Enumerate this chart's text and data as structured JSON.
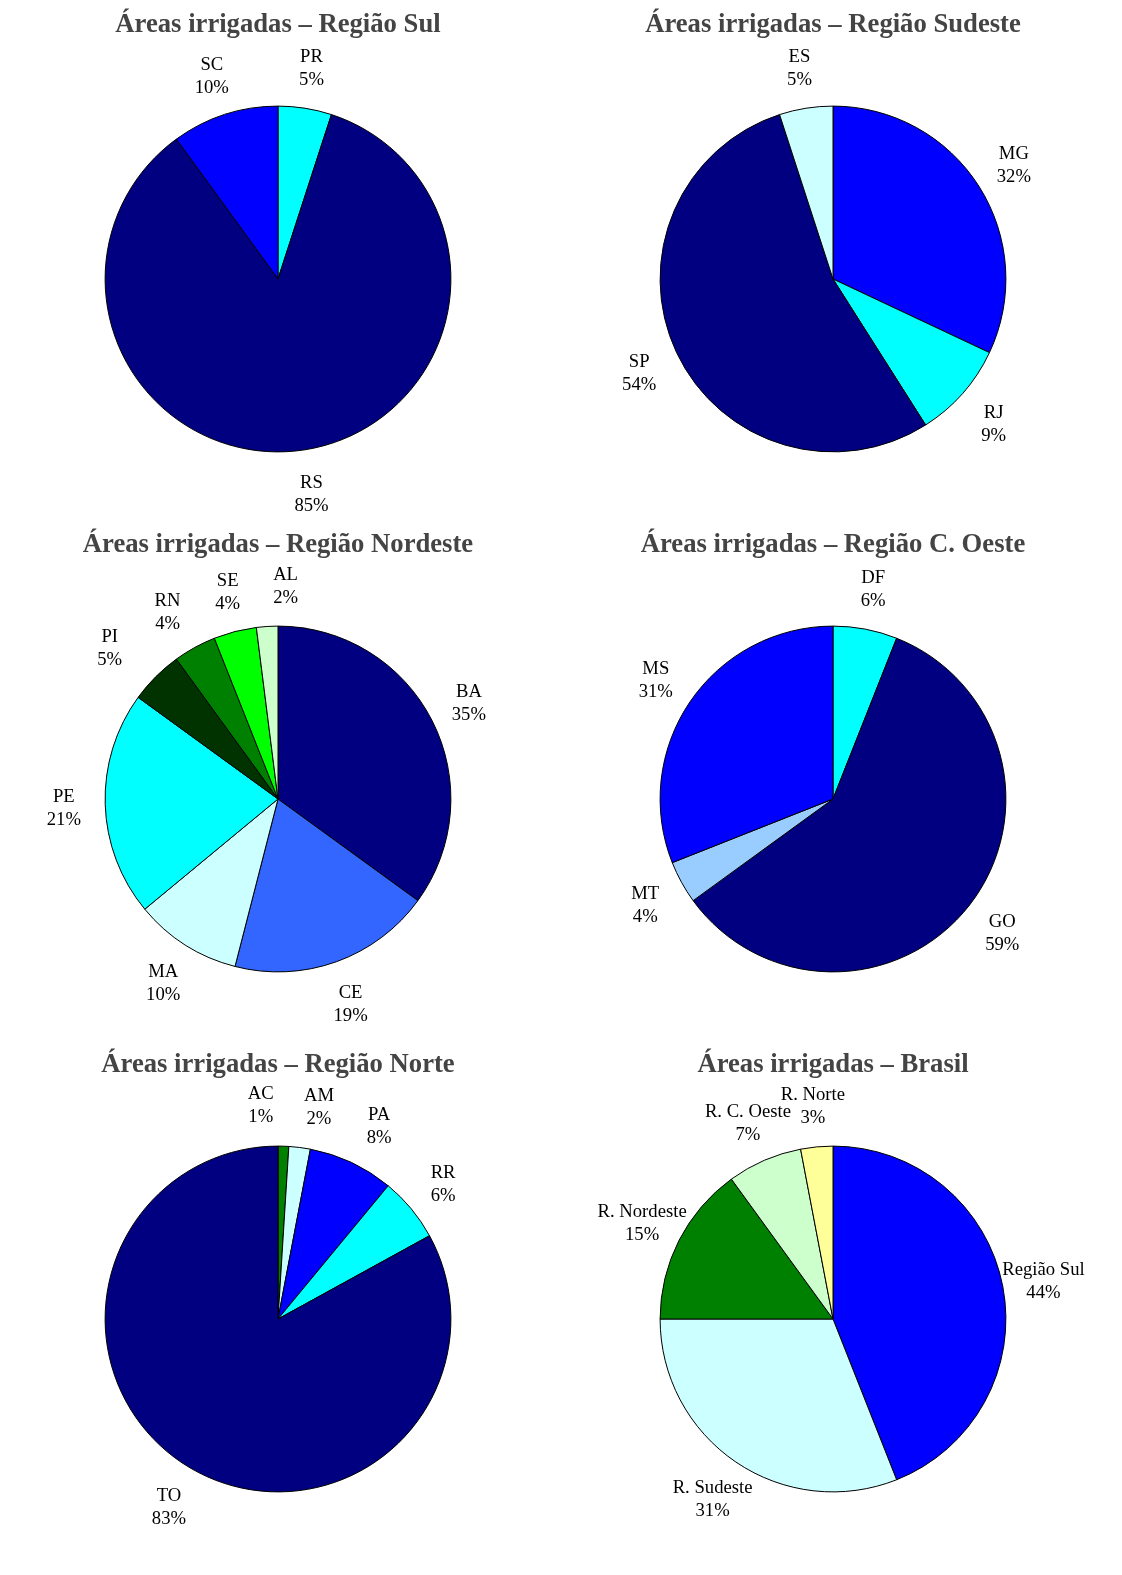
{
  "chart_data": [
    {
      "type": "pie",
      "title": "Áreas irrigadas – Região Sul",
      "categories": [
        "PR",
        "RS",
        "SC"
      ],
      "values": [
        5,
        85,
        10
      ],
      "value_labels": [
        "5%",
        "85%",
        "10%"
      ],
      "colors": [
        "#00ffff",
        "#000080",
        "#0000ff"
      ]
    },
    {
      "type": "pie",
      "title": "Áreas irrigadas – Região Sudeste",
      "categories": [
        "MG",
        "RJ",
        "SP",
        "ES"
      ],
      "values": [
        32,
        9,
        54,
        5
      ],
      "value_labels": [
        "32%",
        "9%",
        "54%",
        "5%"
      ],
      "colors": [
        "#0000ff",
        "#00ffff",
        "#000080",
        "#ccffff"
      ]
    },
    {
      "type": "pie",
      "title": "Áreas irrigadas – Região Nordeste",
      "categories": [
        "BA",
        "CE",
        "MA",
        "PE",
        "PI",
        "RN",
        "SE",
        "AL"
      ],
      "values": [
        35,
        19,
        10,
        21,
        5,
        4,
        4,
        2
      ],
      "value_labels": [
        "35%",
        "19%",
        "10%",
        "21%",
        "5%",
        "4%",
        "4%",
        "2%"
      ],
      "colors": [
        "#000080",
        "#3366ff",
        "#ccffff",
        "#00ffff",
        "#003300",
        "#008000",
        "#00ff00",
        "#ccffcc"
      ]
    },
    {
      "type": "pie",
      "title": "Áreas irrigadas – Região C. Oeste",
      "categories": [
        "DF",
        "GO",
        "MT",
        "MS"
      ],
      "values": [
        6,
        59,
        4,
        31
      ],
      "value_labels": [
        "6%",
        "59%",
        "4%",
        "31%"
      ],
      "colors": [
        "#00ffff",
        "#000080",
        "#99ccff",
        "#0000ff"
      ]
    },
    {
      "type": "pie",
      "title": "Áreas irrigadas – Região Norte",
      "categories": [
        "AC",
        "AM",
        "PA",
        "RR",
        "TO"
      ],
      "values": [
        1,
        2,
        8,
        6,
        83
      ],
      "value_labels": [
        "1%",
        "2%",
        "8%",
        "6%",
        "83%"
      ],
      "colors": [
        "#008000",
        "#ccffff",
        "#0000ff",
        "#00ffff",
        "#000080"
      ]
    },
    {
      "type": "pie",
      "title": "Áreas irrigadas – Brasil",
      "categories": [
        "Região Sul",
        "R. Sudeste",
        "R. Nordeste",
        "R. C. Oeste",
        "R. Norte"
      ],
      "values": [
        44,
        31,
        15,
        7,
        3
      ],
      "value_labels": [
        "44%",
        "31%",
        "15%",
        "7%",
        "3%"
      ],
      "colors": [
        "#0000ff",
        "#ccffff",
        "#008000",
        "#ccffcc",
        "#ffff99"
      ]
    }
  ]
}
